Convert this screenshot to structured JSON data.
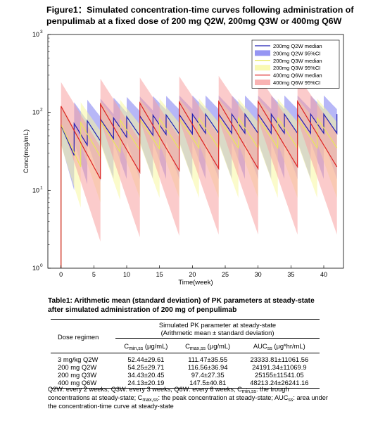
{
  "figure_title": "Figure1：Simulated concentration-time curves following administration of penpulimab at a fixed dose of 200 mg Q2W, 200mg Q3W or 400mg Q6W",
  "chart_data": {
    "type": "line",
    "title": "Figure1：Simulated concentration-time curves following administration of penpulimab at a fixed dose of 200 mg Q2W, 200mg Q3W or 400mg Q6W",
    "xlabel": "Time(week)",
    "ylabel": "Conc(mcg/mL)",
    "xlim": [
      -2,
      43
    ],
    "ylim": [
      1,
      1000
    ],
    "yscale": "log",
    "xticks": [
      0,
      5,
      10,
      15,
      20,
      25,
      30,
      35,
      40
    ],
    "yticks": [
      1,
      10,
      100,
      1000
    ],
    "ytick_labels": [
      "10",
      "10",
      "10",
      "10"
    ],
    "ytick_exponents": [
      "0",
      "1",
      "2",
      "3"
    ],
    "grid": false,
    "legend_position": "top-right",
    "series": [
      {
        "name": "200mg Q2W median",
        "kind": "line",
        "color": "#1f1fb4",
        "interval": 2,
        "start_week": 0,
        "end_week": 42,
        "peaks": [
          68,
          72,
          78,
          82,
          85,
          88,
          90,
          92,
          93,
          94,
          95,
          95,
          95,
          95,
          95,
          95,
          95,
          95,
          95,
          95,
          95,
          95
        ],
        "troughs": [
          28,
          38,
          43,
          46,
          48,
          50,
          51,
          52,
          53,
          53,
          54,
          54,
          54,
          54,
          54,
          54,
          54,
          54,
          54,
          54,
          54,
          54
        ]
      },
      {
        "name": "200mg Q2W 95%CI",
        "kind": "band",
        "color": "#7b7bf0",
        "interval": 2,
        "start_week": 0,
        "end_week": 42,
        "upper_peaks": [
          120,
          135,
          145,
          150,
          155,
          158,
          160,
          162,
          163,
          165,
          165,
          165,
          165,
          165,
          165,
          165,
          165,
          165,
          165,
          165,
          165,
          165
        ],
        "upper_troughs": [
          58,
          78,
          88,
          95,
          100,
          104,
          106,
          108,
          109,
          110,
          110,
          110,
          110,
          110,
          110,
          110,
          110,
          110,
          110,
          110,
          110,
          110
        ],
        "lower_peaks": [
          40,
          42,
          42,
          42,
          42,
          42,
          42,
          42,
          42,
          42,
          42,
          42,
          42,
          42,
          42,
          42,
          42,
          42,
          42,
          42,
          42,
          42
        ],
        "lower_troughs": [
          10,
          12,
          13,
          14,
          14,
          14,
          14,
          14,
          14,
          14,
          14,
          14,
          14,
          14,
          14,
          14,
          14,
          14,
          14,
          14,
          14,
          14
        ]
      },
      {
        "name": "200mg Q3W median",
        "kind": "line",
        "color": "#e8e85a",
        "interval": 3,
        "start_week": 0,
        "end_week": 42,
        "peaks": [
          70,
          74,
          78,
          80,
          82,
          83,
          84,
          84,
          85,
          85,
          85,
          85,
          85,
          85
        ],
        "troughs": [
          20,
          27,
          31,
          33,
          34,
          34,
          35,
          35,
          35,
          35,
          35,
          35,
          35,
          35
        ]
      },
      {
        "name": "200mg Q3W 95%CI",
        "kind": "band",
        "color": "#f7f7a0",
        "interval": 3,
        "start_week": 0,
        "end_week": 42,
        "upper_peaks": [
          125,
          135,
          140,
          145,
          148,
          150,
          150,
          150,
          150,
          150,
          150,
          150,
          150,
          150
        ],
        "upper_troughs": [
          45,
          58,
          66,
          70,
          72,
          73,
          74,
          74,
          75,
          75,
          75,
          75,
          75,
          75
        ],
        "lower_peaks": [
          38,
          39,
          40,
          40,
          40,
          40,
          40,
          40,
          40,
          40,
          40,
          40,
          40,
          40
        ],
        "lower_troughs": [
          6,
          7,
          7.5,
          8,
          8,
          8,
          8,
          8,
          8,
          8,
          8,
          8,
          8,
          8
        ]
      },
      {
        "name": "400mg Q6W median",
        "kind": "line",
        "color": "#dd2222",
        "interval": 6,
        "start_week": 0,
        "end_week": 42,
        "peaks": [
          120,
          128,
          132,
          135,
          137,
          138,
          138
        ],
        "troughs": [
          14,
          17,
          18,
          19,
          19,
          20,
          20
        ]
      },
      {
        "name": "400mg Q6W 95%CI",
        "kind": "band",
        "color": "#f7a0a0",
        "interval": 6,
        "start_week": 0,
        "end_week": 42,
        "upper_peaks": [
          245,
          270,
          280,
          290,
          295,
          300,
          300
        ],
        "upper_troughs": [
          36,
          44,
          48,
          50,
          52,
          53,
          54
        ],
        "lower_peaks": [
          75,
          78,
          80,
          80,
          80,
          80,
          80
        ],
        "lower_troughs": [
          2.2,
          2.5,
          2.6,
          2.7,
          2.7,
          2.7,
          2.7
        ]
      }
    ]
  },
  "table": {
    "title": "Table1: Arithmetic mean (standard deviation) of PK parameters at steady-state after simulated administration of 200 mg of penpulimab",
    "dose_header": "Dose regimen",
    "group_header_line1": "Simulated PK parameter at steady-state",
    "group_header_line2": "(Arithmetic mean ± standard deviation)",
    "col_cmin": "C",
    "col_cmin_sub": "min,ss",
    "col_cmin_unit": " (μg/mL)",
    "col_cmax": "C",
    "col_cmax_sub": "max,ss",
    "col_cmax_unit": " (μg/mL)",
    "col_auc": "AUC",
    "col_auc_sub": "ss",
    "col_auc_unit": " (μg*hr/mL)",
    "rows": [
      [
        "3 mg/kg Q2W",
        "52.44±29.61",
        "111.47±35.55",
        "23333.81±11061.56"
      ],
      [
        "200 mg Q2W",
        "54.25±29.71",
        "116.56±36.94",
        "24191.34±11069.9"
      ],
      [
        "200 mg Q3W",
        "34.43±20.45",
        "97.4±27.35",
        "25155±11541.05"
      ],
      [
        "400 mg Q6W",
        "24.13±20.19",
        "147.5±40.81",
        "48213.24±26241.16"
      ]
    ]
  },
  "footnote": {
    "p1": "Q2W: every 2 weeks; Q3W: every 3 weeks; Q6W: every 6 weeks; C",
    "s1": "min,ss",
    "p2": ": the trough concentrations at steady-state; C",
    "s2": "max,ss",
    "p3": ": the peak concentration at steady-state; AUC",
    "s3": "ss",
    "p4": ": area under the concentration-time curve at steady-state"
  }
}
